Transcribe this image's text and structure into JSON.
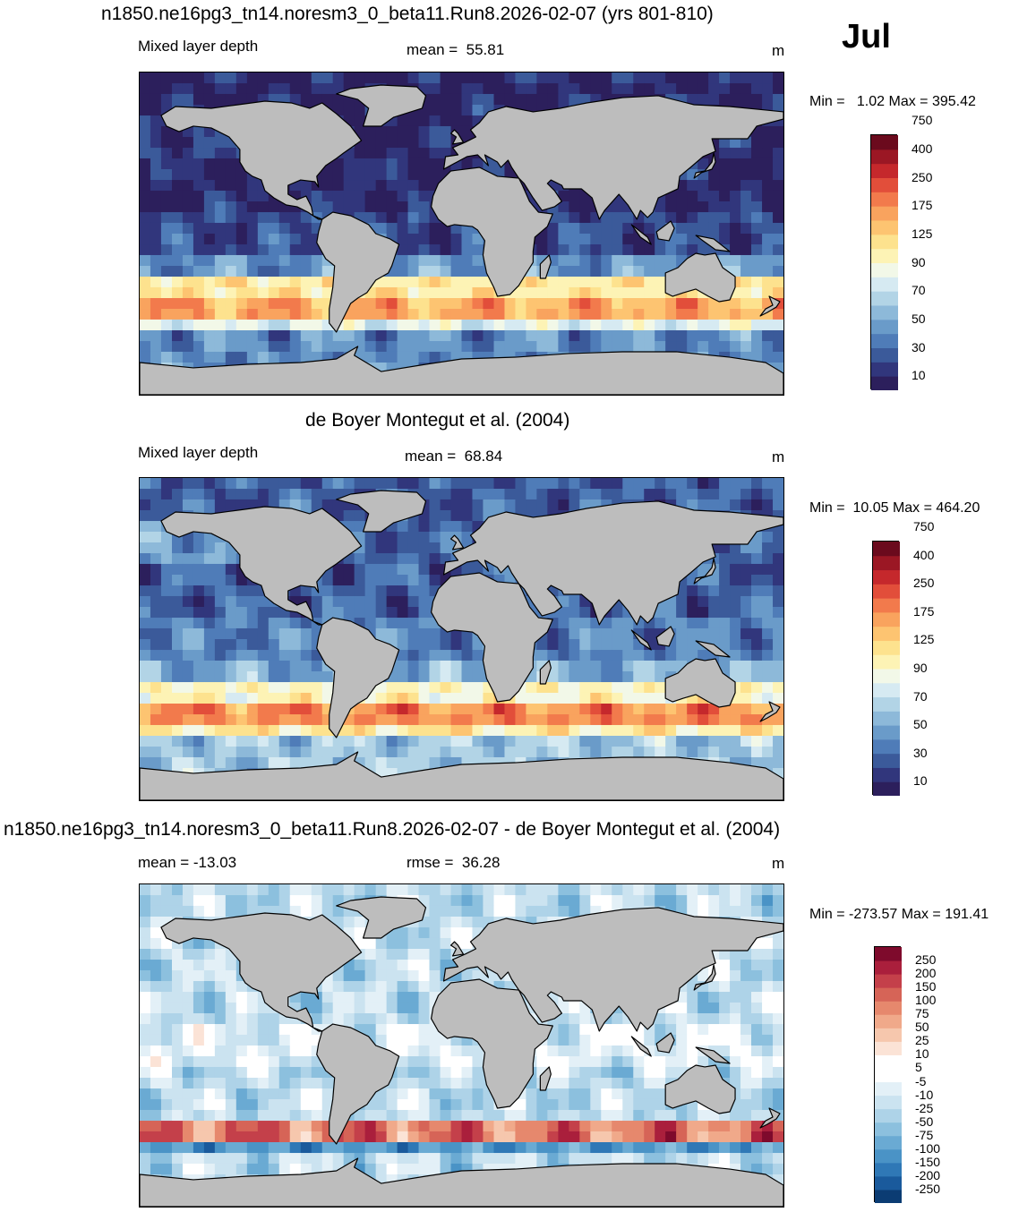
{
  "month": "Jul",
  "panels": [
    {
      "title": "n1850.ne16pg3_tn14.noresm3_0_beta11.Run8.2026-02-07 (yrs 801-810)",
      "left_label": "Mixed layer depth",
      "center_label": "mean =  55.81",
      "units": "m",
      "minmax": "Min =   1.02 Max = 395.42",
      "field": "model",
      "colorbar": {
        "colors": [
          "#2c1f5c",
          "#31367c",
          "#3b5a9a",
          "#4f7cb8",
          "#6a9bc9",
          "#8db9d9",
          "#b2d4e6",
          "#d6eaf2",
          "#f2f8e8",
          "#fdf3b5",
          "#fde28e",
          "#fdc471",
          "#f9a35e",
          "#f27a4c",
          "#e24e3a",
          "#c5282c",
          "#9b1724",
          "#6b0a1d"
        ],
        "ticks": [
          "10",
          "30",
          "50",
          "70",
          "90",
          "125",
          "175",
          "250",
          "400",
          "750"
        ]
      }
    },
    {
      "title": "de Boyer Montegut et al. (2004)",
      "left_label": "Mixed layer depth",
      "center_label": "mean =  68.84",
      "units": "m",
      "minmax": "Min =  10.05 Max = 464.20",
      "field": "obs",
      "colorbar": {
        "colors": [
          "#2c1f5c",
          "#31367c",
          "#3b5a9a",
          "#4f7cb8",
          "#6a9bc9",
          "#8db9d9",
          "#b2d4e6",
          "#d6eaf2",
          "#f2f8e8",
          "#fdf3b5",
          "#fde28e",
          "#fdc471",
          "#f9a35e",
          "#f27a4c",
          "#e24e3a",
          "#c5282c",
          "#9b1724",
          "#6b0a1d"
        ],
        "ticks": [
          "10",
          "30",
          "50",
          "70",
          "90",
          "125",
          "175",
          "250",
          "400",
          "750"
        ]
      }
    },
    {
      "title": "n1850.ne16pg3_tn14.noresm3_0_beta11.Run8.2026-02-07 - de Boyer Montegut et al. (2004)",
      "left_label": "mean = -13.03",
      "center_label": "rmse =  36.28",
      "units": "m",
      "minmax": "Min = -273.57 Max = 191.41",
      "field": "diff",
      "colorbar": {
        "colors": [
          "#0b3c73",
          "#1a5a9c",
          "#2f78b6",
          "#4a93c6",
          "#6aaad3",
          "#8cc0de",
          "#aed3e8",
          "#cbe3f0",
          "#e3f0f7",
          "#ffffff",
          "#ffffff",
          "#fbe3d6",
          "#f6c7ad",
          "#f0a98a",
          "#e6886d",
          "#d66457",
          "#c4404a",
          "#aa1f3c",
          "#7e0a2c"
        ],
        "ticks": [
          "-250",
          "-200",
          "-150",
          "-100",
          "-75",
          "-50",
          "-25",
          "-10",
          "-5",
          "5",
          "10",
          "25",
          "50",
          "75",
          "100",
          "150",
          "200",
          "250"
        ]
      }
    }
  ]
}
